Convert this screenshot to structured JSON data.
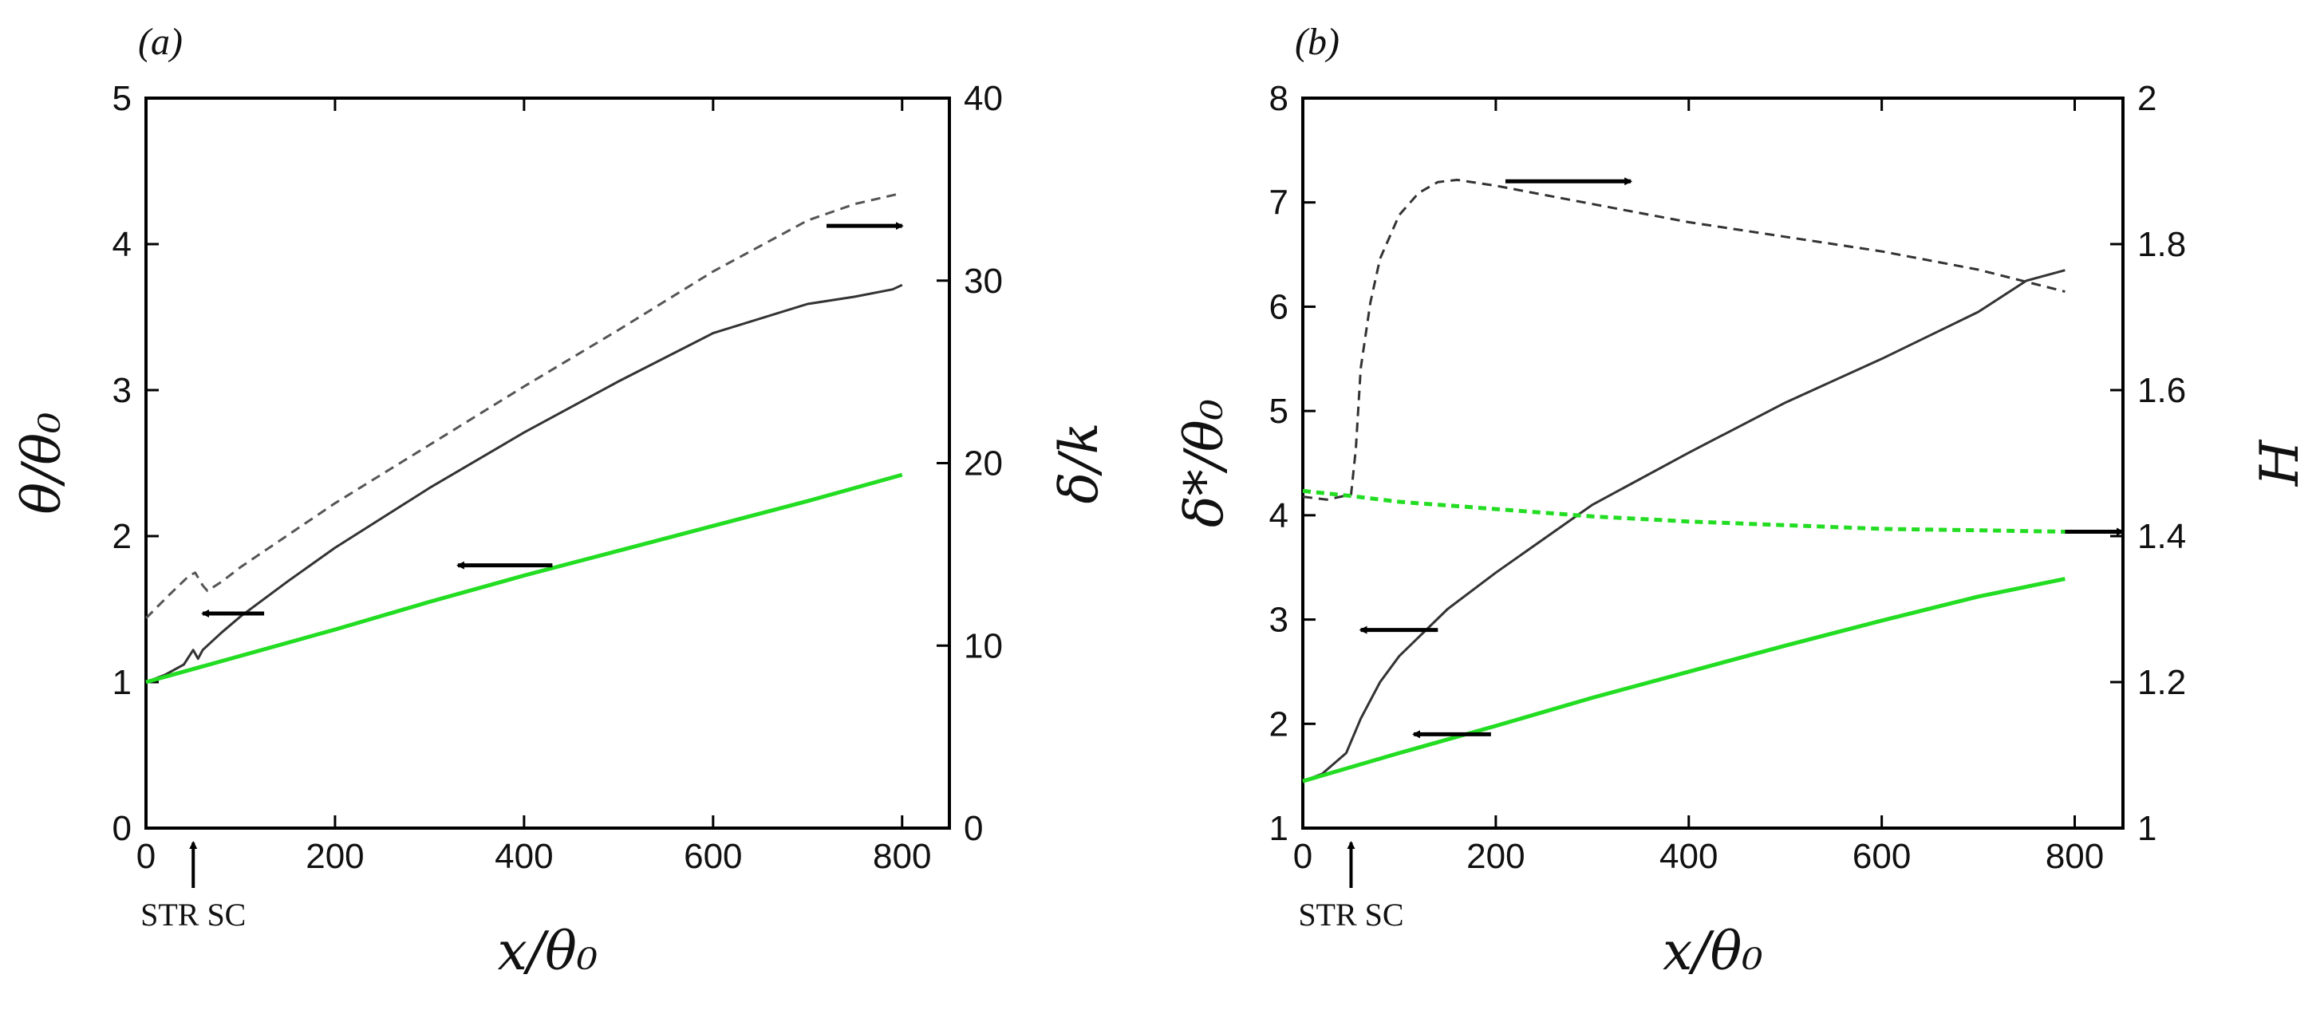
{
  "chart_data": [
    {
      "panel": "(a)",
      "type": "line",
      "xlabel": "x/θ₀",
      "ylabel_left": "θ/θ₀",
      "ylabel_right": "δ/k",
      "xlim": [
        0,
        850
      ],
      "ylim_left": [
        0,
        5
      ],
      "ylim_right": [
        0,
        40
      ],
      "xticks": [
        "0",
        "200",
        "400",
        "600",
        "800"
      ],
      "yticks_left": [
        "0",
        "1",
        "2",
        "3",
        "4",
        "5"
      ],
      "yticks_right": [
        "0",
        "10",
        "20",
        "30",
        "40"
      ],
      "marker": {
        "label": "STR SC",
        "x": 50
      },
      "series": [
        {
          "name": "theta-rough",
          "axis": "left",
          "color": "#333333",
          "style": "solid",
          "x": [
            0,
            20,
            40,
            50,
            55,
            60,
            80,
            100,
            150,
            200,
            300,
            400,
            500,
            600,
            700,
            750,
            790,
            800
          ],
          "y": [
            1.0,
            1.05,
            1.12,
            1.22,
            1.16,
            1.22,
            1.34,
            1.45,
            1.69,
            1.92,
            2.33,
            2.71,
            3.06,
            3.39,
            3.59,
            3.64,
            3.69,
            3.72
          ]
        },
        {
          "name": "theta-smooth",
          "axis": "left",
          "color": "#22dd22",
          "style": "solid",
          "x": [
            0,
            100,
            200,
            300,
            400,
            500,
            600,
            700,
            800
          ],
          "y": [
            1.0,
            1.18,
            1.36,
            1.55,
            1.73,
            1.9,
            2.07,
            2.24,
            2.42
          ]
        },
        {
          "name": "delta-rough",
          "axis": "right",
          "color": "#555555",
          "style": "dashed",
          "x": [
            0,
            25,
            45,
            52,
            60,
            65,
            80,
            100,
            200,
            300,
            400,
            500,
            600,
            700,
            750,
            800
          ],
          "y": [
            11.5,
            12.8,
            13.8,
            14.0,
            13.3,
            13.0,
            13.5,
            14.3,
            17.8,
            21.0,
            24.2,
            27.3,
            30.5,
            33.3,
            34.2,
            34.8
          ]
        }
      ],
      "arrows": [
        {
          "direction": "right",
          "x_from": 720,
          "x_to": 800,
          "y": 33,
          "axis": "right"
        },
        {
          "direction": "left",
          "x_from": 430,
          "x_to": 330,
          "y": 1.8,
          "axis": "left"
        },
        {
          "direction": "left",
          "x_from": 125,
          "x_to": 60,
          "y": 1.47,
          "axis": "left"
        }
      ]
    },
    {
      "panel": "(b)",
      "type": "line",
      "xlabel": "x/θ₀",
      "ylabel_left": "δ*/θ₀",
      "ylabel_right": "H",
      "xlim": [
        0,
        850
      ],
      "ylim_left": [
        1,
        8
      ],
      "ylim_right": [
        1,
        2
      ],
      "xticks": [
        "0",
        "200",
        "400",
        "600",
        "800"
      ],
      "yticks_left": [
        "1",
        "2",
        "3",
        "4",
        "5",
        "6",
        "7",
        "8"
      ],
      "yticks_right": [
        "1",
        "1.2",
        "1.4",
        "1.6",
        "1.8",
        "2"
      ],
      "marker": {
        "label": "STR SC",
        "x": 50
      },
      "series": [
        {
          "name": "deltastar-rough",
          "axis": "left",
          "color": "#333333",
          "style": "solid",
          "x": [
            0,
            20,
            45,
            60,
            80,
            100,
            150,
            200,
            300,
            400,
            500,
            600,
            700,
            750,
            790
          ],
          "y": [
            1.45,
            1.52,
            1.72,
            2.05,
            2.4,
            2.65,
            3.1,
            3.45,
            4.1,
            4.6,
            5.08,
            5.5,
            5.95,
            6.25,
            6.35
          ]
        },
        {
          "name": "deltastar-smooth",
          "axis": "left",
          "color": "#22dd22",
          "style": "solid",
          "x": [
            0,
            100,
            200,
            300,
            400,
            500,
            600,
            700,
            790
          ],
          "y": [
            1.45,
            1.72,
            1.98,
            2.25,
            2.5,
            2.75,
            2.99,
            3.22,
            3.39
          ]
        },
        {
          "name": "H-rough",
          "axis": "right",
          "color": "#333333",
          "style": "dashed",
          "x": [
            0,
            25,
            50,
            55,
            60,
            70,
            80,
            100,
            120,
            140,
            160,
            200,
            300,
            400,
            500,
            600,
            700,
            790
          ],
          "y": [
            1.454,
            1.45,
            1.457,
            1.52,
            1.63,
            1.72,
            1.78,
            1.84,
            1.87,
            1.885,
            1.888,
            1.88,
            1.855,
            1.83,
            1.81,
            1.79,
            1.765,
            1.735
          ]
        },
        {
          "name": "H-smooth",
          "axis": "right",
          "color": "#22dd22",
          "style": "dashed",
          "x": [
            0,
            50,
            100,
            200,
            300,
            400,
            500,
            600,
            700,
            790
          ],
          "y": [
            1.462,
            1.455,
            1.447,
            1.437,
            1.427,
            1.42,
            1.415,
            1.41,
            1.408,
            1.406
          ]
        }
      ],
      "arrows": [
        {
          "direction": "right",
          "x_from": 210,
          "x_to": 340,
          "y": 1.886,
          "axis": "right"
        },
        {
          "direction": "right",
          "x_from": 790,
          "x_to": 850,
          "y": 1.406,
          "axis": "right"
        },
        {
          "direction": "left",
          "x_from": 140,
          "x_to": 60,
          "y": 2.9,
          "axis": "left"
        },
        {
          "direction": "left",
          "x_from": 195,
          "x_to": 115,
          "y": 1.9,
          "axis": "left"
        }
      ]
    }
  ]
}
